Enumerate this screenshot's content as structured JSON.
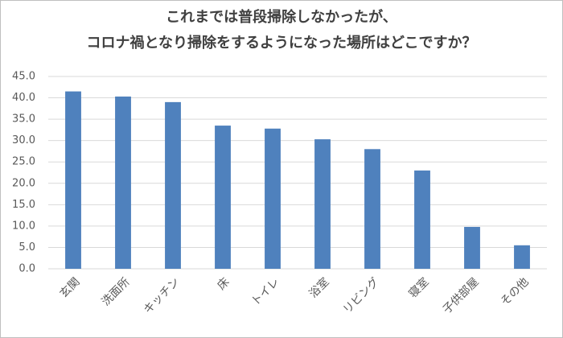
{
  "chart_data": {
    "type": "bar",
    "title": [
      "これまでは普段掃除しなかったが、",
      "コロナ禍となり掃除をするようになった場所はどこですか？"
    ],
    "categories": [
      "玄関",
      "洗面所",
      "キッチン",
      "床",
      "トイレ",
      "浴室",
      "リビング",
      "寝室",
      "子供部屋",
      "その他"
    ],
    "values": [
      41.5,
      40.3,
      39.0,
      33.5,
      32.8,
      30.3,
      28.0,
      23.0,
      9.8,
      5.5
    ],
    "color": "#4f81bd",
    "ylim": [
      0,
      45
    ],
    "yticks": [
      {
        "value": 0,
        "label": "0.0"
      },
      {
        "value": 5,
        "label": "5.0"
      },
      {
        "value": 10,
        "label": "10.0"
      },
      {
        "value": 15,
        "label": "15.0"
      },
      {
        "value": 20,
        "label": "20.0"
      },
      {
        "value": 25,
        "label": "25.0"
      },
      {
        "value": 30,
        "label": "30.0"
      },
      {
        "value": 35,
        "label": "35.0"
      },
      {
        "value": 40,
        "label": "40.0"
      },
      {
        "value": 45,
        "label": "45.0"
      }
    ],
    "grid": true
  }
}
